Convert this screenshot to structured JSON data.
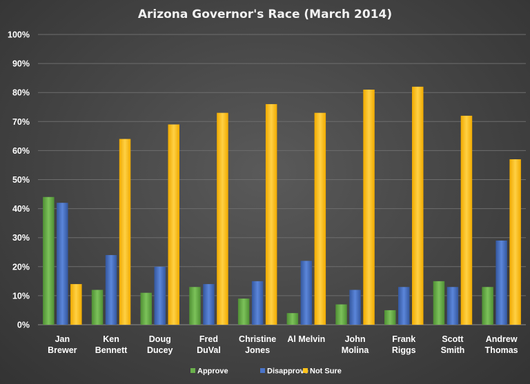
{
  "chart_data": {
    "type": "bar",
    "title": "Arizona Governor's Race (March 2014)",
    "xlabel": "",
    "ylabel": "",
    "ylim": [
      0,
      100
    ],
    "y_ticks": [
      "0%",
      "10%",
      "20%",
      "30%",
      "40%",
      "50%",
      "60%",
      "70%",
      "80%",
      "90%",
      "100%"
    ],
    "grid": true,
    "legend_position": "bottom",
    "categories": [
      [
        "Jan",
        "Brewer"
      ],
      [
        "Ken",
        "Bennett"
      ],
      [
        "Doug",
        "Ducey"
      ],
      [
        "Fred",
        "DuVal"
      ],
      [
        "Christine",
        "Jones"
      ],
      [
        "Al Melvin"
      ],
      [
        "John",
        "Molina"
      ],
      [
        "Frank",
        "Riggs"
      ],
      [
        "Scott",
        "Smith"
      ],
      [
        "Andrew",
        "Thomas"
      ]
    ],
    "series": [
      {
        "name": "Approve",
        "color": "#6ab04c",
        "values": [
          44,
          12,
          11,
          13,
          9,
          4,
          7,
          5,
          15,
          13
        ]
      },
      {
        "name": "Disapprove",
        "color": "#4a74c9",
        "values": [
          42,
          24,
          20,
          14,
          15,
          22,
          12,
          13,
          13,
          29
        ]
      },
      {
        "name": "Not Sure",
        "color": "#ffc21a",
        "values": [
          14,
          64,
          69,
          73,
          76,
          73,
          81,
          82,
          72,
          57
        ]
      }
    ]
  }
}
